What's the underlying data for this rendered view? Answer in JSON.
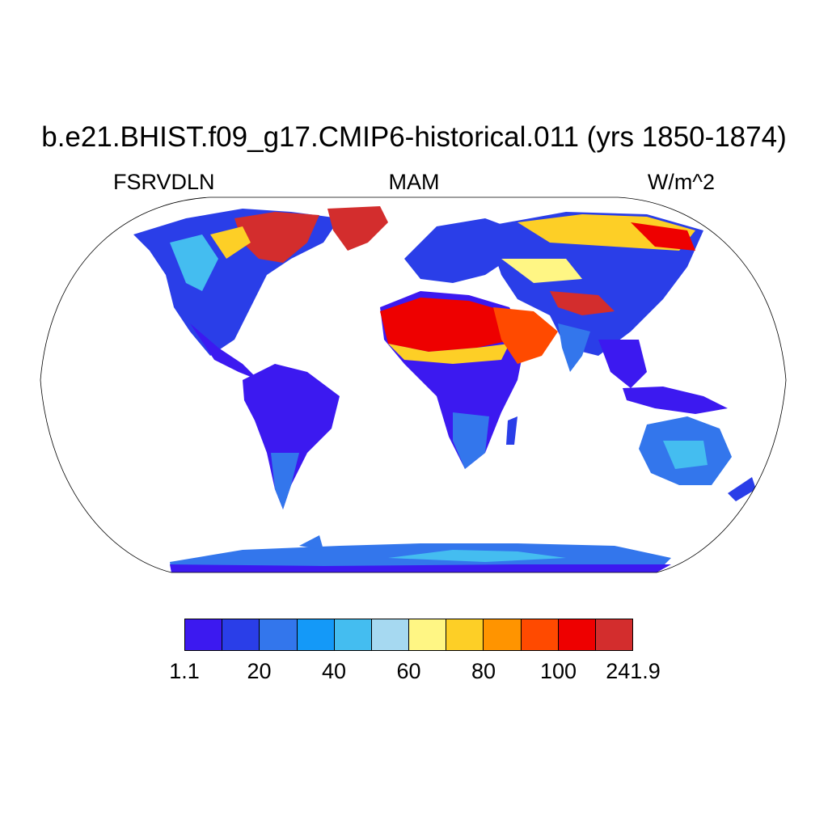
{
  "title": "b.e21.BHIST.f09_g17.CMIP6-historical.011 (yrs 1850-1874)",
  "subtitle_left": "FSRVDLN",
  "subtitle_center": "MAM",
  "subtitle_right": "W/m^2",
  "colorbar": {
    "colors": [
      "#3c19f0",
      "#2a3ee8",
      "#3376ec",
      "#1499f8",
      "#44bdf0",
      "#a6d9f1",
      "#fff684",
      "#fdcf26",
      "#ff9400",
      "#ff4a00",
      "#ee0000",
      "#d32d2d"
    ],
    "labels": [
      "1.1",
      "20",
      "40",
      "60",
      "80",
      "100",
      "241.9"
    ]
  },
  "ocean_color": "#ffffff"
}
